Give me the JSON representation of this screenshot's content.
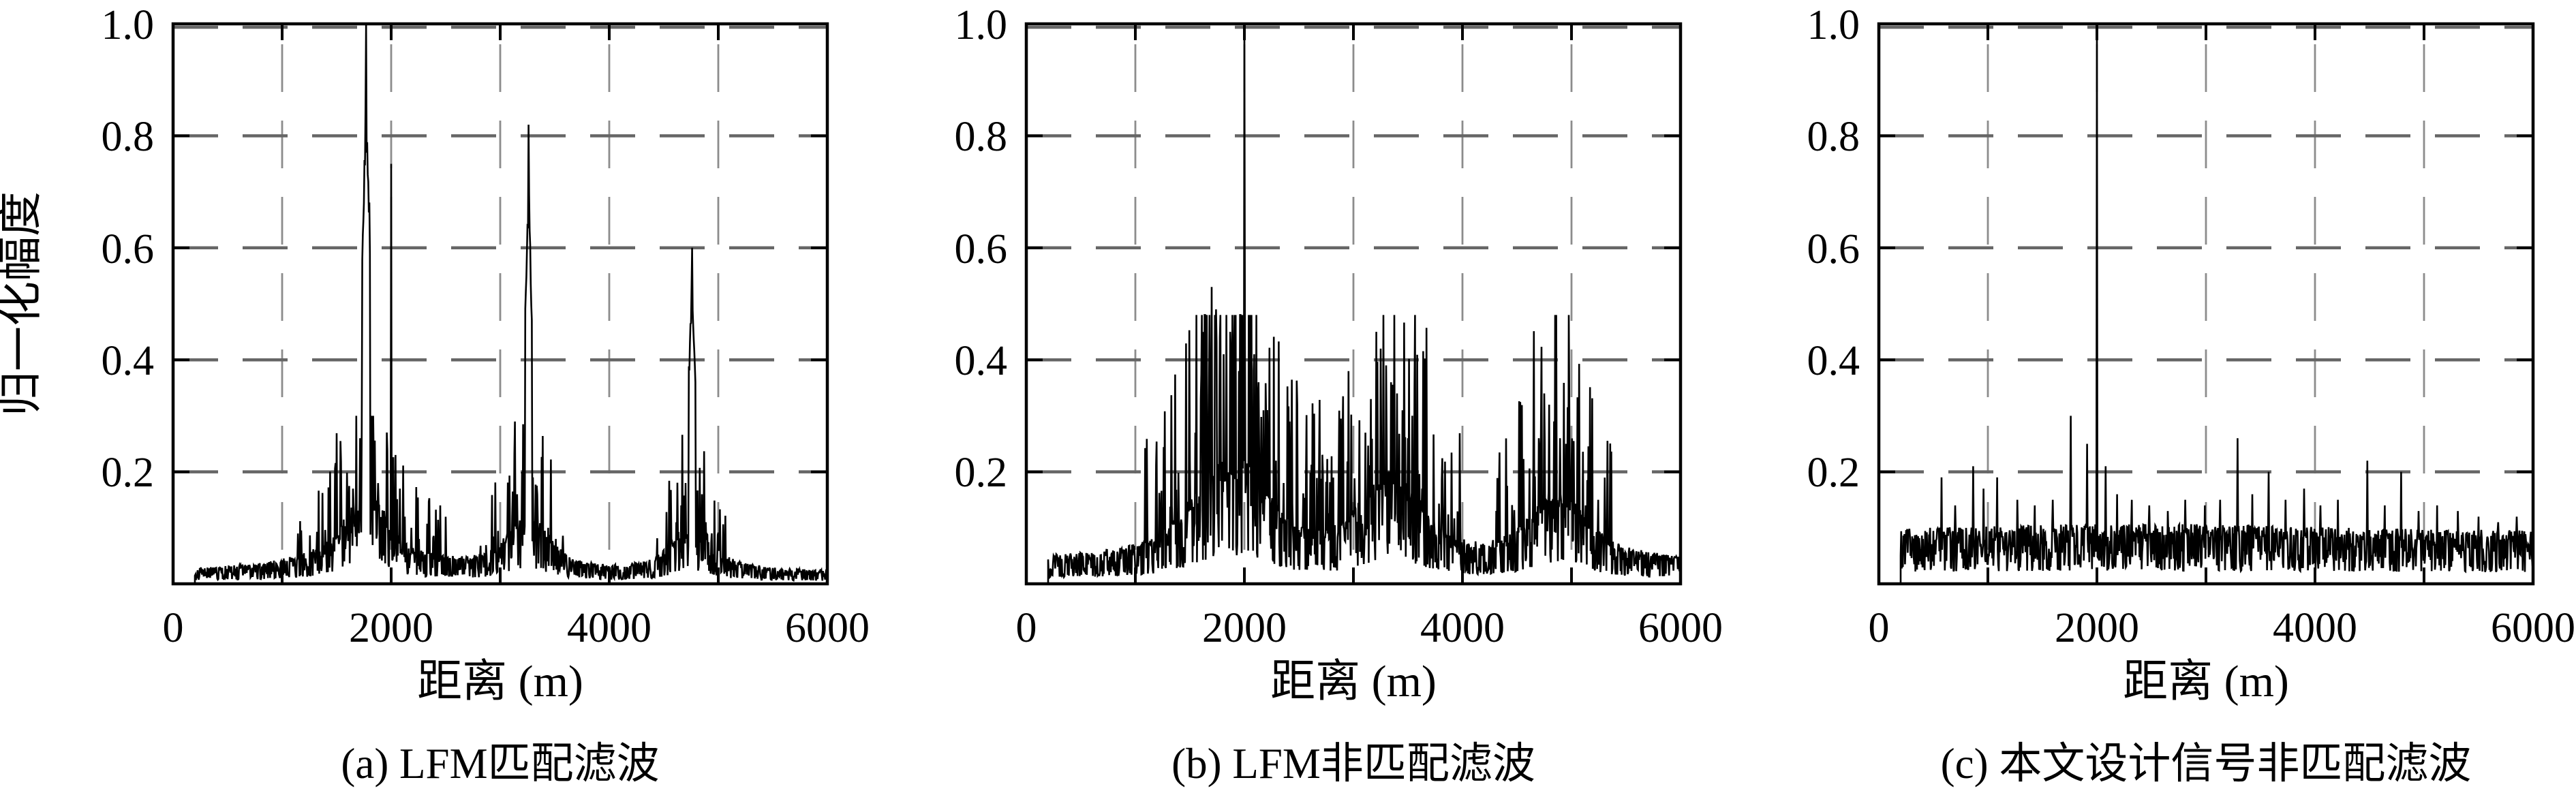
{
  "figure": {
    "ylabel": "归一化幅度",
    "xlabel": "距离 (m)",
    "background": "#ffffff",
    "axes": {
      "xlim": [
        0,
        6000
      ],
      "ylim": [
        0,
        1.0
      ],
      "x_tick_labels": [
        "0",
        "2000",
        "4000",
        "6000"
      ],
      "x_tick_values": [
        0,
        2000,
        4000,
        6000
      ],
      "x_minor_gridlines": [
        1000,
        2000,
        3000,
        4000,
        5000
      ],
      "y_tick_labels": [
        "1.0",
        "0.8",
        "0.6",
        "0.4",
        "0.2"
      ],
      "y_tick_values": [
        1.0,
        0.8,
        0.6,
        0.4,
        0.2
      ],
      "y_gridlines": [
        0.2,
        0.4,
        0.6,
        0.8,
        1.0
      ],
      "grid_style": "dashed"
    },
    "colors": {
      "data": "#000000",
      "axis": "#000000",
      "h_grid": "#666666",
      "v_grid": "#8c8c8c"
    }
  },
  "chart_data": [
    {
      "id": "a",
      "type": "line",
      "caption": "(a) LFM匹配滤波",
      "xlabel": "距离 (m)",
      "ylabel": "归一化幅度",
      "xlim": [
        0,
        6000
      ],
      "ylim": [
        0,
        1.0
      ],
      "peaks": [
        {
          "x": 1770,
          "amplitude": 1.0,
          "body": 0.91,
          "body_halfwidth": 36
        },
        {
          "x": 2000,
          "amplitude": 0.75
        },
        {
          "x": 3260,
          "amplitude": 0.82,
          "body": 0.73,
          "body_halfwidth": 32
        },
        {
          "x": 4760,
          "amplitude": 0.6,
          "body": 0.56,
          "body_halfwidth": 28
        }
      ],
      "spikes": [
        [
          1530,
          0.08
        ],
        [
          1575,
          0.1
        ],
        [
          1612,
          0.13
        ],
        [
          1648,
          0.17
        ],
        [
          1682,
          0.21
        ],
        [
          1715,
          0.26
        ],
        [
          1745,
          0.24
        ],
        [
          1815,
          0.22
        ],
        [
          1850,
          0.18
        ],
        [
          1888,
          0.14
        ],
        [
          1925,
          0.12
        ],
        [
          1962,
          0.1
        ],
        [
          2040,
          0.23
        ],
        [
          2080,
          0.17
        ],
        [
          2125,
          0.12
        ],
        [
          2185,
          0.1
        ],
        [
          2255,
          0.08
        ],
        [
          3065,
          0.09
        ],
        [
          3110,
          0.12
        ],
        [
          3155,
          0.16
        ],
        [
          3200,
          0.2
        ],
        [
          3232,
          0.21
        ],
        [
          3300,
          0.19
        ],
        [
          3340,
          0.16
        ],
        [
          3385,
          0.13
        ],
        [
          3440,
          0.1
        ],
        [
          3510,
          0.08
        ],
        [
          4570,
          0.08
        ],
        [
          4615,
          0.11
        ],
        [
          4658,
          0.14
        ],
        [
          4700,
          0.18
        ],
        [
          4730,
          0.17
        ],
        [
          4800,
          0.16
        ],
        [
          4842,
          0.13
        ],
        [
          4885,
          0.11
        ],
        [
          4940,
          0.09
        ],
        [
          5010,
          0.07
        ]
      ],
      "noise": {
        "seed": 11,
        "base": 0.026,
        "start": 200,
        "step": 5,
        "bumps": [
          [
            1770,
            0.085,
            180
          ],
          [
            1770,
            0.032,
            430
          ],
          [
            1770,
            0.02,
            800
          ],
          [
            3260,
            0.07,
            165
          ],
          [
            3260,
            0.028,
            400
          ],
          [
            4760,
            0.06,
            155
          ],
          [
            4760,
            0.025,
            380
          ]
        ],
        "burst": {
          "p": 0.14,
          "gain": 1.6,
          "cap": 0.3
        }
      }
    },
    {
      "id": "b",
      "type": "line",
      "caption": "(b) LFM非匹配滤波",
      "xlabel": "距离 (m)",
      "ylabel": "归一化幅度",
      "xlim": [
        0,
        6000
      ],
      "ylim": [
        0,
        1.0
      ],
      "peaks": [
        {
          "x": 2000,
          "amplitude": 1.0
        },
        {
          "x": 1700,
          "amplitude": 0.53
        },
        {
          "x": 2052,
          "amplitude": 0.46
        },
        {
          "x": 3208,
          "amplitude": 0.45
        },
        {
          "x": 4752,
          "amplitude": 0.34
        }
      ],
      "spikes": [
        [
          1500,
          0.22
        ],
        [
          1552,
          0.27
        ],
        [
          1602,
          0.33
        ],
        [
          1655,
          0.4
        ],
        [
          1700,
          0.53
        ],
        [
          1738,
          0.49
        ],
        [
          1775,
          0.44
        ],
        [
          1812,
          0.41
        ],
        [
          1868,
          0.45
        ],
        [
          1905,
          0.42
        ],
        [
          1948,
          0.38
        ],
        [
          1992,
          0.34
        ],
        [
          2052,
          0.46
        ],
        [
          2088,
          0.41
        ],
        [
          2132,
          0.36
        ],
        [
          2175,
          0.31
        ],
        [
          2232,
          0.27
        ],
        [
          2292,
          0.22
        ],
        [
          2360,
          0.18
        ],
        [
          3110,
          0.27
        ],
        [
          3162,
          0.33
        ],
        [
          3208,
          0.45
        ],
        [
          3252,
          0.42
        ],
        [
          3298,
          0.39
        ],
        [
          3345,
          0.36
        ],
        [
          3398,
          0.34
        ],
        [
          3448,
          0.31
        ],
        [
          3502,
          0.26
        ],
        [
          3562,
          0.21
        ],
        [
          3630,
          0.17
        ],
        [
          4648,
          0.21
        ],
        [
          4702,
          0.26
        ],
        [
          4752,
          0.34
        ],
        [
          4795,
          0.32
        ],
        [
          4842,
          0.29
        ],
        [
          4895,
          0.26
        ],
        [
          4948,
          0.25
        ],
        [
          5002,
          0.21
        ],
        [
          5062,
          0.17
        ],
        [
          5130,
          0.14
        ]
      ],
      "noise": {
        "seed": 23,
        "base": 0.052,
        "start": 200,
        "step": 5,
        "bumps": [
          [
            1880,
            0.13,
            300
          ],
          [
            1880,
            0.05,
            620
          ],
          [
            3350,
            0.105,
            250
          ],
          [
            3350,
            0.042,
            520
          ],
          [
            4870,
            0.085,
            220
          ],
          [
            4870,
            0.035,
            460
          ]
        ],
        "burst": {
          "p": 0.18,
          "gain": 2.2,
          "cap": 0.48
        }
      }
    },
    {
      "id": "c",
      "type": "line",
      "caption": "(c) 本文设计信号非匹配滤波",
      "xlabel": "距离 (m)",
      "ylabel": "归一化幅度",
      "xlim": [
        0,
        6000
      ],
      "ylim": [
        0,
        1.0
      ],
      "peaks": [
        {
          "x": 2000,
          "amplitude": 1.0
        },
        {
          "x": 1760,
          "amplitude": 0.3
        },
        {
          "x": 3290,
          "amplitude": 0.26
        },
        {
          "x": 4480,
          "amplitude": 0.22
        }
      ],
      "spikes": [
        [
          575,
          0.19
        ],
        [
          700,
          0.14
        ],
        [
          865,
          0.21
        ],
        [
          960,
          0.17
        ],
        [
          1085,
          0.19
        ],
        [
          1270,
          0.15
        ],
        [
          1430,
          0.14
        ],
        [
          1595,
          0.15
        ],
        [
          1760,
          0.3
        ],
        [
          1910,
          0.25
        ],
        [
          2080,
          0.21
        ],
        [
          2185,
          0.16
        ],
        [
          2320,
          0.15
        ],
        [
          2480,
          0.14
        ],
        [
          2650,
          0.13
        ],
        [
          2810,
          0.15
        ],
        [
          2990,
          0.14
        ],
        [
          3130,
          0.15
        ],
        [
          3290,
          0.26
        ],
        [
          3425,
          0.16
        ],
        [
          3575,
          0.2
        ],
        [
          3730,
          0.15
        ],
        [
          3900,
          0.17
        ],
        [
          4050,
          0.14
        ],
        [
          4210,
          0.15
        ],
        [
          4480,
          0.22
        ],
        [
          4640,
          0.14
        ],
        [
          4790,
          0.2
        ],
        [
          4950,
          0.13
        ],
        [
          5120,
          0.14
        ],
        [
          5310,
          0.13
        ],
        [
          5500,
          0.12
        ],
        [
          5680,
          0.11
        ],
        [
          5850,
          0.12
        ]
      ],
      "noise": {
        "seed": 37,
        "base": 0.095,
        "start": 200,
        "step": 5,
        "bumps": [
          [
            2400,
            0.012,
            1500
          ]
        ]
      }
    }
  ]
}
